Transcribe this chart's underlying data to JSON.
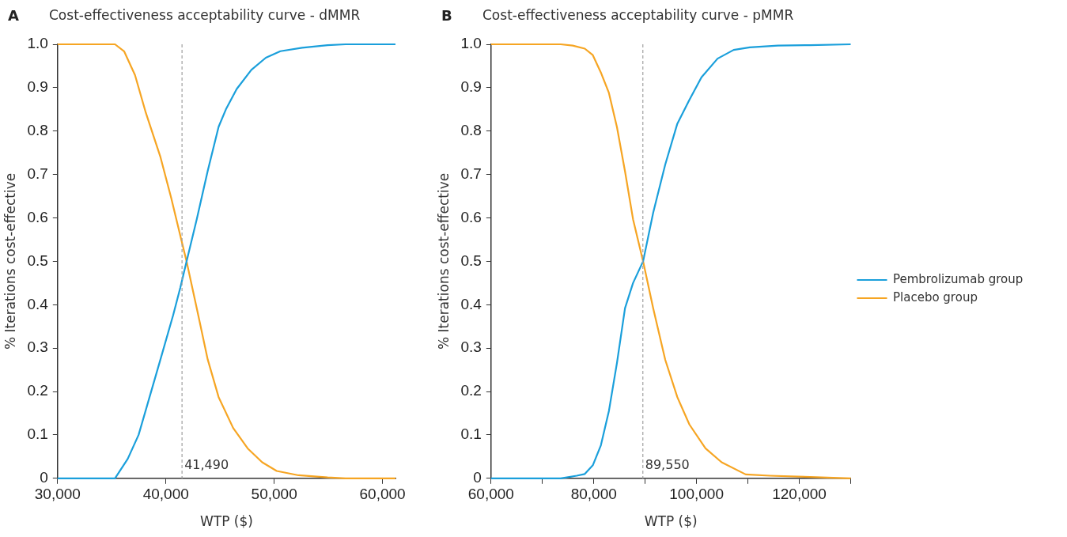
{
  "chart_data": [
    {
      "type": "line",
      "title": "Cost-effectiveness acceptability curve - dMMR",
      "xlabel": "WTP ($)",
      "ylabel": "% Iterations cost-effective",
      "annotations": [
        "A"
      ],
      "xlim": [
        30000,
        61200
      ],
      "xticks": [
        {
          "value": 30000,
          "label": "30,000"
        },
        {
          "value": 40000,
          "label": "40,000"
        },
        {
          "value": 50000,
          "label": "50,000"
        },
        {
          "value": 60000,
          "label": "60,000"
        }
      ],
      "ylim": [
        0,
        1
      ],
      "yticks": [
        0,
        {
          "value": 0.1,
          "label": "0.1"
        },
        {
          "value": 0.2,
          "label": "0.2"
        },
        {
          "value": 0.3,
          "label": "0.3"
        },
        {
          "value": 0.4,
          "label": "0.4"
        },
        {
          "value": 0.5,
          "label": "0.5"
        },
        {
          "value": 0.6,
          "label": "0.6"
        },
        {
          "value": 0.7,
          "label": "0.7"
        },
        {
          "value": 0.8,
          "label": "0.8"
        },
        {
          "value": 0.9,
          "label": "0.9"
        },
        {
          "value": 1,
          "label": "1.0"
        }
      ],
      "grid": false,
      "legend": false,
      "marker": "none",
      "line_style": "solid",
      "ref_lines": [
        {
          "axis": "x",
          "value": 41490,
          "label": "41,490",
          "color": "#a0a0a0",
          "line_style": "dashed"
        }
      ],
      "series": [
        {
          "color": "#1a9fdb",
          "x": [
            30000,
            35300,
            36480,
            37480,
            38490,
            39500,
            40670,
            41340,
            41910,
            42850,
            43860,
            44870,
            45540,
            46540,
            47890,
            49230,
            50570,
            52580,
            54930,
            56600,
            61200
          ],
          "values": [
            0,
            0,
            0.045,
            0.1,
            0.187,
            0.274,
            0.376,
            0.44,
            0.5,
            0.597,
            0.708,
            0.81,
            0.85,
            0.897,
            0.941,
            0.969,
            0.984,
            0.992,
            0.998,
            1,
            1
          ]
        },
        {
          "color": "#f6a523",
          "x": [
            30000,
            35300,
            36140,
            37150,
            38150,
            39500,
            40500,
            41340,
            41910,
            42850,
            43860,
            44870,
            46210,
            47550,
            48890,
            50230,
            52250,
            54930,
            56600,
            61200
          ],
          "values": [
            1,
            1,
            0.984,
            0.929,
            0.842,
            0.74,
            0.645,
            0.558,
            0.5,
            0.392,
            0.274,
            0.187,
            0.116,
            0.069,
            0.037,
            0.017,
            0.007,
            0.002,
            0,
            0
          ]
        }
      ]
    },
    {
      "type": "line",
      "title": "Cost-effectiveness acceptability curve - pMMR",
      "xlabel": "WTP ($)",
      "ylabel": "% Iterations cost-effective",
      "annotations": [
        "B"
      ],
      "xlim": [
        60000,
        130000
      ],
      "xticks": [
        {
          "value": 60000,
          "label": "60,000"
        },
        {
          "value": 70000,
          "label": null
        },
        {
          "value": 80000,
          "label": "80,000"
        },
        {
          "value": 90000,
          "label": null
        },
        {
          "value": 100000,
          "label": "100,000"
        },
        {
          "value": 110000,
          "label": null
        },
        {
          "value": 120000,
          "label": "120,000"
        },
        {
          "value": 130000,
          "label": null
        }
      ],
      "ylim": [
        0,
        1
      ],
      "yticks": [
        0,
        {
          "value": 0.1,
          "label": "0.1"
        },
        {
          "value": 0.2,
          "label": "0.2"
        },
        {
          "value": 0.3,
          "label": "0.3"
        },
        {
          "value": 0.4,
          "label": "0.4"
        },
        {
          "value": 0.5,
          "label": "0.5"
        },
        {
          "value": 0.6,
          "label": "0.6"
        },
        {
          "value": 0.7,
          "label": "0.7"
        },
        {
          "value": 0.8,
          "label": "0.8"
        },
        {
          "value": 0.9,
          "label": "0.9"
        },
        {
          "value": 1,
          "label": "1.0"
        }
      ],
      "grid": false,
      "legend": "right",
      "marker": "none",
      "line_style": "solid",
      "ref_lines": [
        {
          "axis": "x",
          "value": 89550,
          "label": "89,550",
          "color": "#a0a0a0",
          "line_style": "dashed"
        }
      ],
      "series": [
        {
          "name": "Pembrolizumab group",
          "color": "#1a9fdb",
          "x": [
            60000,
            73550,
            76680,
            78250,
            79810,
            81380,
            82940,
            84510,
            86080,
            87640,
            89600,
            91560,
            93910,
            96260,
            98610,
            100960,
            104090,
            107220,
            110350,
            115830,
            122100,
            130000
          ],
          "values": [
            0,
            0,
            0.006,
            0.01,
            0.03,
            0.076,
            0.155,
            0.266,
            0.392,
            0.45,
            0.5,
            0.612,
            0.723,
            0.817,
            0.872,
            0.924,
            0.967,
            0.987,
            0.993,
            0.997,
            0.998,
            1
          ]
        },
        {
          "name": "Placebo group",
          "color": "#f6a523",
          "x": [
            60000,
            73550,
            75900,
            78250,
            79810,
            81380,
            82940,
            84510,
            86080,
            87640,
            89600,
            91560,
            93910,
            96260,
            98610,
            101740,
            104880,
            109570,
            114270,
            122100,
            130000
          ],
          "values": [
            1,
            1,
            0.997,
            0.99,
            0.975,
            0.935,
            0.888,
            0.809,
            0.707,
            0.597,
            0.5,
            0.392,
            0.273,
            0.187,
            0.124,
            0.069,
            0.037,
            0.009,
            0.006,
            0.003,
            0
          ]
        }
      ]
    }
  ]
}
